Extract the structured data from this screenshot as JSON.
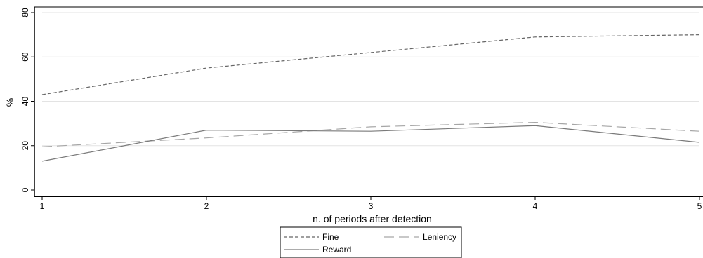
{
  "chart_data": {
    "type": "line",
    "xlabel": "n. of periods after detection",
    "ylabel": "%",
    "xlim": [
      1,
      5
    ],
    "ylim": [
      0,
      80
    ],
    "x_ticks": [
      1,
      2,
      3,
      4,
      5
    ],
    "y_ticks": [
      0,
      20,
      40,
      60,
      80
    ],
    "grid": "horizontal",
    "legend_position": "bottom",
    "x": [
      1,
      2,
      3,
      4,
      5
    ],
    "series": [
      {
        "name": "Fine",
        "values": [
          43,
          55,
          62,
          69,
          70
        ],
        "dash": "dashed-short",
        "color": "#666666"
      },
      {
        "name": "Leniency",
        "values": [
          19.5,
          23.5,
          28.5,
          30.5,
          26.5
        ],
        "dash": "dashed-long",
        "color": "#a6a6a6"
      },
      {
        "name": "Reward",
        "values": [
          13,
          27,
          26.5,
          29,
          21.5
        ],
        "dash": "solid",
        "color": "#7a7a7a"
      }
    ]
  }
}
